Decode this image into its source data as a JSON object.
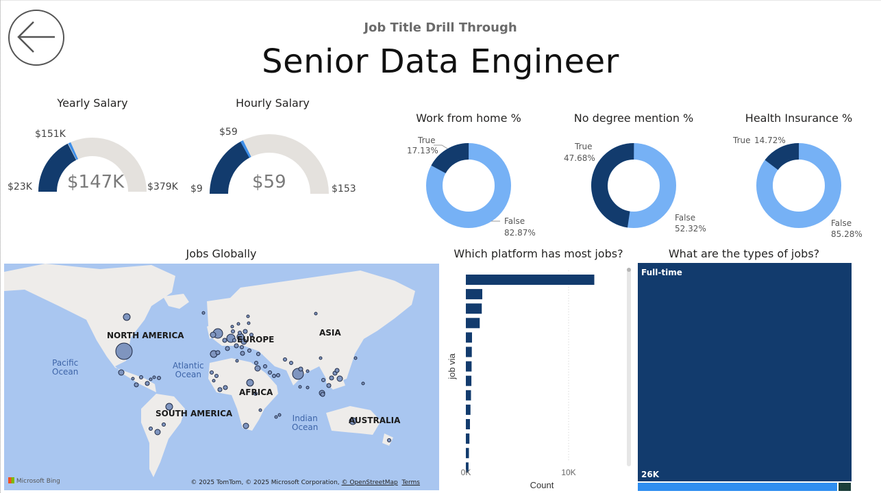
{
  "header": {
    "subtitle": "Job Title Drill Through",
    "title": "Senior Data Engineer"
  },
  "colors": {
    "dark_blue": "#123b6d",
    "light_blue": "#76b1f5",
    "gauge_track": "#e4e1dd",
    "map_water": "#a9c6f0",
    "map_land": "#eeecea",
    "bubble": "#7f95bf",
    "treemap_second": "#2f8ef0",
    "treemap_third": "#1c3f3b"
  },
  "icons": {
    "back": "back-arrow-icon",
    "bing": "microsoft-bing-logo"
  },
  "gauges": [
    {
      "title": "Yearly Salary",
      "value_label": "$147K",
      "min_label": "$23K",
      "max_label": "$379K",
      "target_label": "$151K",
      "value": 147,
      "min": 23,
      "max": 379,
      "target": 151
    },
    {
      "title": "Hourly Salary",
      "value_label": "$59",
      "min_label": "$9",
      "max_label": "$153",
      "target_label": "$59",
      "value": 59,
      "min": 9,
      "max": 153,
      "target": 59
    }
  ],
  "donuts": [
    {
      "title": "Work from home %",
      "true_label": "True",
      "true_pct": "17.13%",
      "false_label": "False",
      "false_pct": "82.87%",
      "true_value": 17.13
    },
    {
      "title": "No degree mention %",
      "true_label": "True",
      "true_pct": "47.68%",
      "false_label": "False",
      "false_pct": "52.32%",
      "true_value": 47.68
    },
    {
      "title": "Health Insurance %",
      "true_label": "True",
      "true_pct": "14.72%",
      "false_label": "False",
      "false_pct": "85.28%",
      "true_value": 14.72
    }
  ],
  "map": {
    "title": "Jobs Globally",
    "continents": [
      "NORTH AMERICA",
      "EUROPE",
      "ASIA",
      "AFRICA",
      "SOUTH AMERICA",
      "AUSTRALIA"
    ],
    "oceans": [
      [
        "Pacific",
        "Ocean"
      ],
      [
        "Atlantic",
        "Ocean"
      ],
      [
        "Indian",
        "Ocean"
      ]
    ],
    "brand": "Microsoft Bing",
    "credits_prefix": "© 2025 TomTom, © 2025 Microsoft Corporation, ",
    "credits_link": "© OpenStreetMap",
    "terms": "Terms"
  },
  "chart_data": [
    {
      "type": "bar",
      "title": "Which platform has most jobs?",
      "xlabel": "Count",
      "ylabel": "job via",
      "orientation": "horizontal",
      "xlim": [
        0,
        13000
      ],
      "xticks": [
        "0K",
        "10K"
      ],
      "values": [
        12500,
        1600,
        1550,
        1350,
        600,
        580,
        560,
        540,
        500,
        450,
        400,
        350,
        300,
        260
      ]
    },
    {
      "type": "treemap",
      "title": "What are the types of jobs?",
      "categories": [
        "Full-time",
        "",
        ""
      ],
      "labels": [
        "Full-time",
        "26K"
      ],
      "values": [
        26000,
        950,
        60
      ]
    }
  ]
}
